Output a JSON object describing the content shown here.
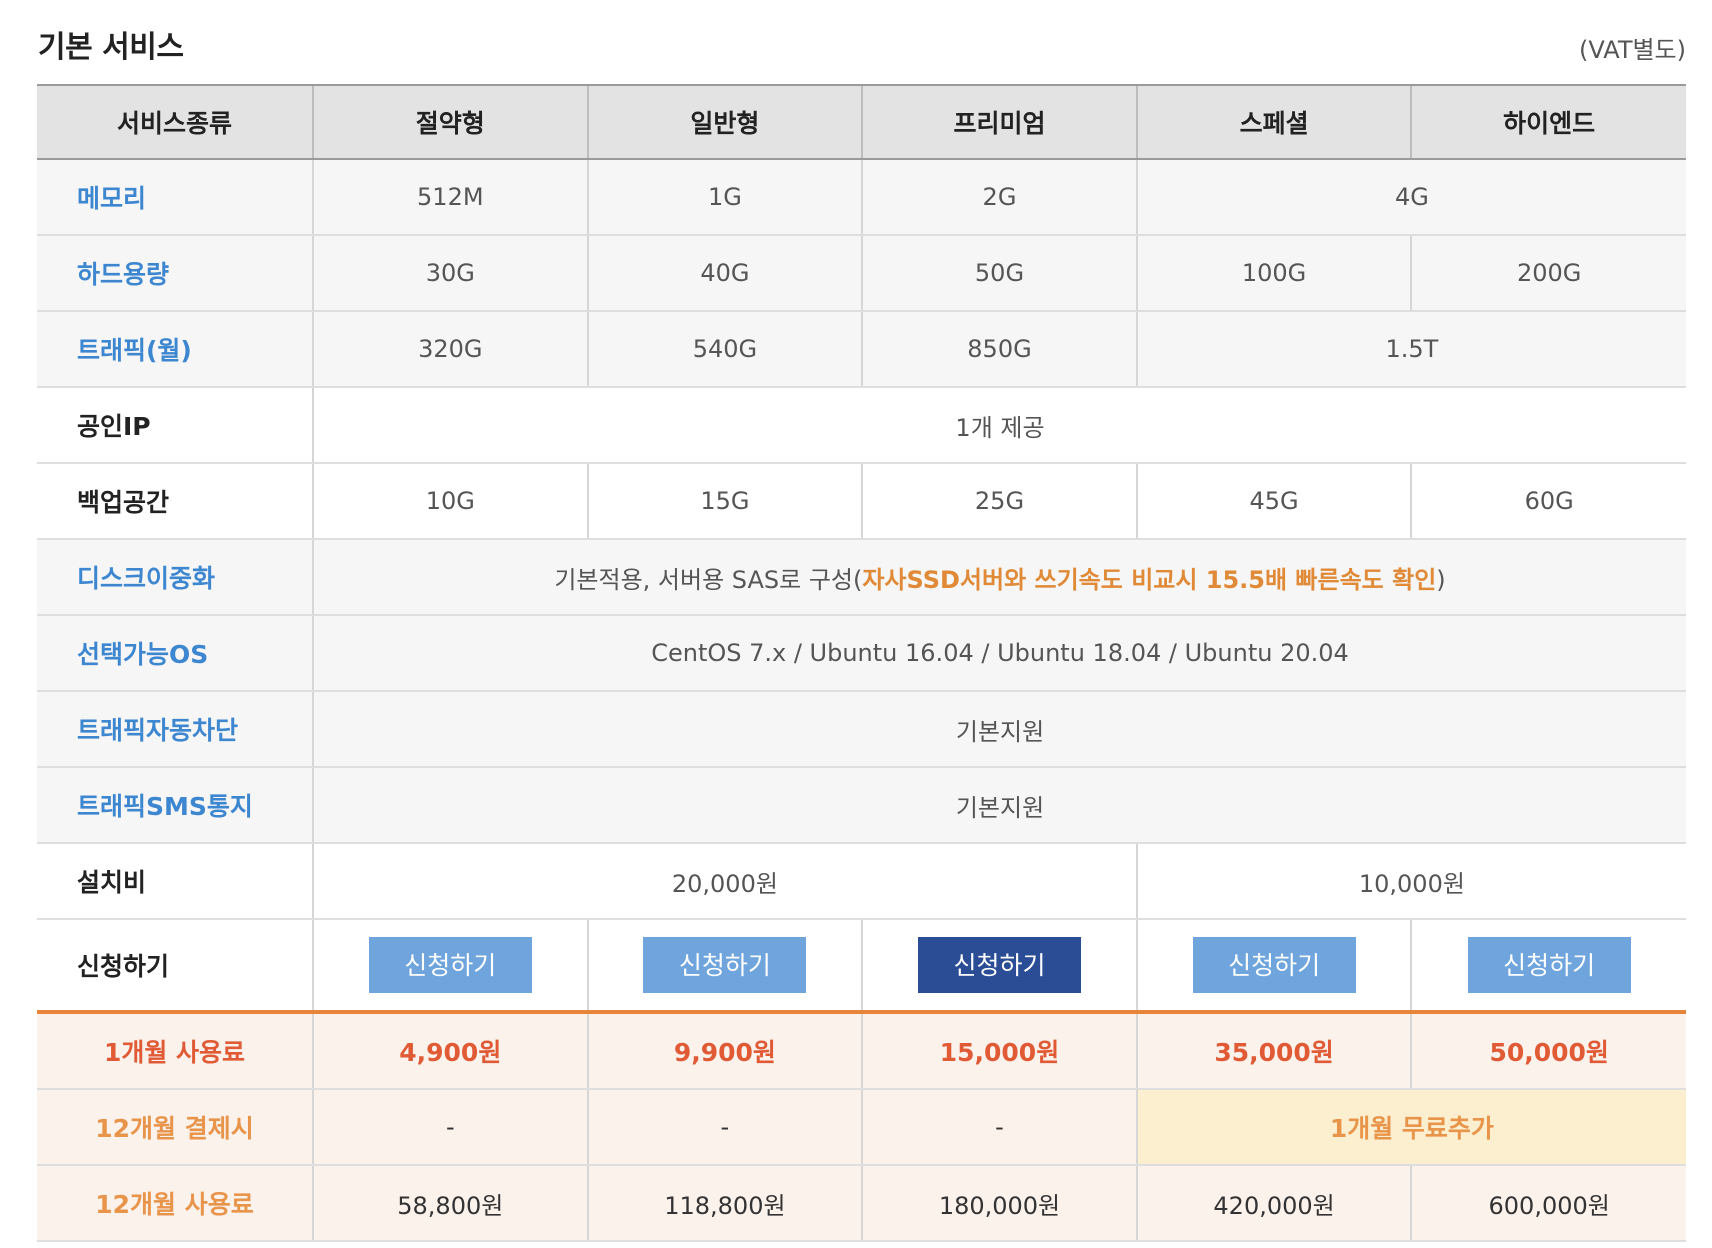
{
  "header": {
    "title": "기본 서비스",
    "vat_note": "(VAT별도)"
  },
  "columns": [
    "서비스종류",
    "절약형",
    "일반형",
    "프리미엄",
    "스페셜",
    "하이엔드"
  ],
  "rows": {
    "memory": {
      "label": "메모리",
      "values": [
        "512M",
        "1G",
        "2G",
        "4G"
      ]
    },
    "disk": {
      "label": "하드용량",
      "values": [
        "30G",
        "40G",
        "50G",
        "100G",
        "200G"
      ]
    },
    "traffic": {
      "label": "트래픽(월)",
      "values": [
        "320G",
        "540G",
        "850G",
        "1.5T"
      ]
    },
    "public_ip": {
      "label": "공인IP",
      "value": "1개 제공"
    },
    "backup": {
      "label": "백업공간",
      "values": [
        "10G",
        "15G",
        "25G",
        "45G",
        "60G"
      ]
    },
    "raid": {
      "label": "디스크이중화",
      "value_prefix": "기본적용, 서버용 SAS로 구성(",
      "value_highlight": "자사SSD서버와 쓰기속도 비교시 15.5배 빠른속도 확인",
      "value_suffix": ")"
    },
    "os": {
      "label": "선택가능OS",
      "value": "CentOS 7.x / Ubuntu 16.04 / Ubuntu 18.04 / Ubuntu 20.04"
    },
    "traffic_block": {
      "label": "트래픽자동차단",
      "value": "기본지원"
    },
    "traffic_sms": {
      "label": "트래픽SMS통지",
      "value": "기본지원"
    },
    "setup_fee": {
      "label": "설치비",
      "values": [
        "20,000원",
        "10,000원"
      ]
    },
    "apply": {
      "label": "신청하기",
      "button_label": "신청하기"
    }
  },
  "pricing": {
    "monthly": {
      "label": "1개월 사용료",
      "values": [
        "4,900원",
        "9,900원",
        "15,000원",
        "35,000원",
        "50,000원"
      ]
    },
    "annual_bonus": {
      "label": "12개월 결제시",
      "values": [
        "-",
        "-",
        "-"
      ],
      "bonus": "1개월 무료추가"
    },
    "annual_total": {
      "label": "12개월 사용료",
      "values": [
        "58,800원",
        "118,800원",
        "180,000원",
        "420,000원",
        "600,000원"
      ]
    }
  },
  "colors": {
    "label_blue": "#3d86d0",
    "button_blue": "#6fa5dc",
    "button_active": "#2a4d96",
    "price_red": "#e05a36",
    "accent_orange": "#e6843a"
  }
}
